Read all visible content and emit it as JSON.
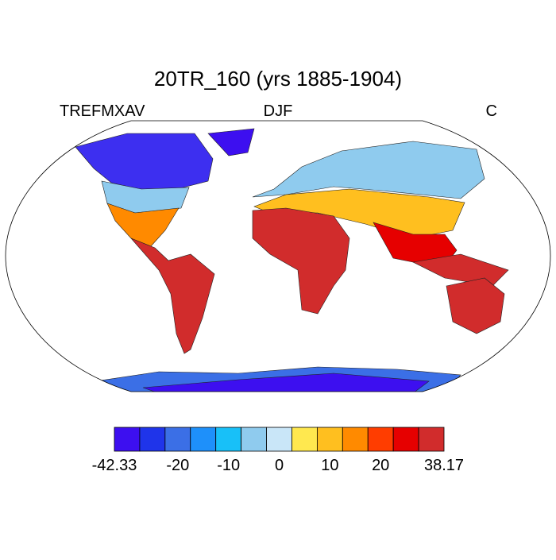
{
  "title": "20TR_160 (yrs 1885-1904)",
  "left_label": "TREFMXAV",
  "center_label": "DJF",
  "right_label": "C",
  "colorbar": {
    "colors": [
      "#3d0ff0",
      "#1f34ea",
      "#3b6fe6",
      "#1e90fa",
      "#18c0f8",
      "#8fcbee",
      "#c9e6f8",
      "#ffe84f",
      "#ffbf1f",
      "#ff8a00",
      "#ff3d00",
      "#e60000",
      "#d12c2c"
    ],
    "labels": [
      -42.33,
      -20,
      -10,
      0,
      10,
      20,
      38.17
    ]
  }
}
